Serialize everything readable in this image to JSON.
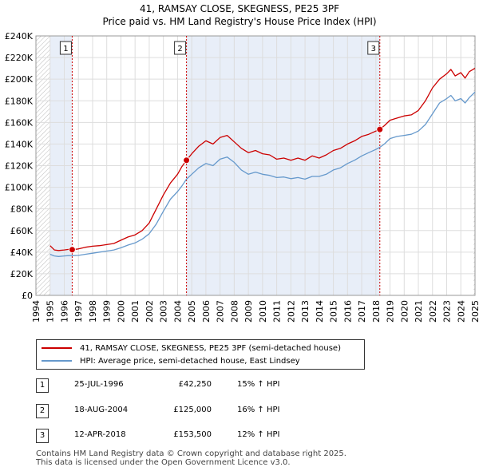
{
  "header": {
    "title": "41, RAMSAY CLOSE, SKEGNESS, PE25 3PF",
    "subtitle": "Price paid vs. HM Land Registry's House Price Index (HPI)"
  },
  "legend": {
    "property_label": "41, RAMSAY CLOSE, SKEGNESS, PE25 3PF (semi-detached house)",
    "hpi_label": "HPI: Average price, semi-detached house, East Lindsey"
  },
  "transactions": [
    {
      "num": "1",
      "date": "25-JUL-1996",
      "price": "£42,250",
      "hpi": "15% ↑ HPI"
    },
    {
      "num": "2",
      "date": "18-AUG-2004",
      "price": "£125,000",
      "hpi": "16% ↑ HPI"
    },
    {
      "num": "3",
      "date": "12-APR-2018",
      "price": "£153,500",
      "hpi": "12% ↑ HPI"
    }
  ],
  "footer": {
    "line1": "Contains HM Land Registry data © Crown copyright and database right 2025.",
    "line2": "This data is licensed under the Open Government Licence v3.0."
  },
  "colors": {
    "property": "#cc0000",
    "hpi": "#6699cc",
    "shade": "#e8eef8",
    "grid": "#dddddd"
  },
  "chart_data": {
    "type": "line",
    "title": "41, RAMSAY CLOSE, SKEGNESS, PE25 3PF",
    "subtitle": "Price paid vs. HM Land Registry's House Price Index (HPI)",
    "xlabel": "",
    "ylabel": "",
    "xlim": [
      1994,
      2025
    ],
    "ylim": [
      0,
      240000
    ],
    "x_ticks": [
      "1994",
      "1995",
      "1996",
      "1997",
      "1998",
      "1999",
      "2000",
      "2001",
      "2002",
      "2003",
      "2004",
      "2005",
      "2006",
      "2007",
      "2008",
      "2009",
      "2010",
      "2011",
      "2012",
      "2013",
      "2014",
      "2015",
      "2016",
      "2017",
      "2018",
      "2019",
      "2020",
      "2021",
      "2022",
      "2023",
      "2024",
      "2025"
    ],
    "y_ticks": [
      {
        "value": 0,
        "label": "£0"
      },
      {
        "value": 20000,
        "label": "£20K"
      },
      {
        "value": 40000,
        "label": "£40K"
      },
      {
        "value": 60000,
        "label": "£60K"
      },
      {
        "value": 80000,
        "label": "£80K"
      },
      {
        "value": 100000,
        "label": "£100K"
      },
      {
        "value": 120000,
        "label": "£120K"
      },
      {
        "value": 140000,
        "label": "£140K"
      },
      {
        "value": 160000,
        "label": "£160K"
      },
      {
        "value": 180000,
        "label": "£180K"
      },
      {
        "value": 200000,
        "label": "£200K"
      },
      {
        "value": 220000,
        "label": "£220K"
      },
      {
        "value": 240000,
        "label": "£240K"
      }
    ],
    "grid": true,
    "series": [
      {
        "name": "41, RAMSAY CLOSE, SKEGNESS, PE25 3PF (semi-detached house)",
        "x": [
          1995.0,
          1995.3,
          1995.6,
          1996.0,
          1996.3,
          1996.56,
          1997.0,
          1997.5,
          1998.0,
          1998.5,
          1999.0,
          1999.5,
          2000.0,
          2000.5,
          2001.0,
          2001.5,
          2002.0,
          2002.5,
          2003.0,
          2003.5,
          2004.0,
          2004.3,
          2004.63,
          2005.0,
          2005.5,
          2006.0,
          2006.5,
          2007.0,
          2007.5,
          2008.0,
          2008.5,
          2009.0,
          2009.5,
          2010.0,
          2010.5,
          2011.0,
          2011.5,
          2012.0,
          2012.5,
          2013.0,
          2013.5,
          2014.0,
          2014.5,
          2015.0,
          2015.5,
          2016.0,
          2016.5,
          2017.0,
          2017.5,
          2018.0,
          2018.28,
          2018.6,
          2019.0,
          2019.5,
          2020.0,
          2020.5,
          2021.0,
          2021.5,
          2022.0,
          2022.5,
          2023.0,
          2023.3,
          2023.6,
          2024.0,
          2024.3,
          2024.6,
          2025.0
        ],
        "values": [
          46000,
          42000,
          41500,
          42000,
          42500,
          42250,
          43000,
          44500,
          45500,
          46000,
          47000,
          48000,
          51000,
          54000,
          56000,
          60000,
          67000,
          80000,
          93000,
          104000,
          112000,
          119000,
          125000,
          131000,
          138000,
          143000,
          140000,
          146000,
          148000,
          142000,
          136000,
          132000,
          134000,
          131000,
          130000,
          126000,
          127000,
          125000,
          127000,
          125000,
          129000,
          127000,
          130000,
          134000,
          136000,
          140000,
          143000,
          147000,
          149000,
          152000,
          153500,
          157000,
          162000,
          164000,
          166000,
          167000,
          171000,
          180000,
          192000,
          200000,
          205000,
          209000,
          203000,
          206000,
          201000,
          207000,
          210000
        ]
      },
      {
        "name": "HPI: Average price, semi-detached house, East Lindsey",
        "x": [
          1995.0,
          1995.3,
          1995.6,
          1996.0,
          1996.3,
          1996.56,
          1997.0,
          1997.5,
          1998.0,
          1998.5,
          1999.0,
          1999.5,
          2000.0,
          2000.5,
          2001.0,
          2001.5,
          2002.0,
          2002.5,
          2003.0,
          2003.5,
          2004.0,
          2004.3,
          2004.63,
          2005.0,
          2005.5,
          2006.0,
          2006.5,
          2007.0,
          2007.5,
          2008.0,
          2008.5,
          2009.0,
          2009.5,
          2010.0,
          2010.5,
          2011.0,
          2011.5,
          2012.0,
          2012.5,
          2013.0,
          2013.5,
          2014.0,
          2014.5,
          2015.0,
          2015.5,
          2016.0,
          2016.5,
          2017.0,
          2017.5,
          2018.0,
          2018.28,
          2018.6,
          2019.0,
          2019.5,
          2020.0,
          2020.5,
          2021.0,
          2021.5,
          2022.0,
          2022.5,
          2023.0,
          2023.3,
          2023.6,
          2024.0,
          2024.3,
          2024.6,
          2025.0
        ],
        "values": [
          38000,
          36500,
          36000,
          36500,
          36800,
          36800,
          37000,
          38000,
          39000,
          40000,
          41000,
          42000,
          44000,
          46500,
          48500,
          52000,
          57000,
          66000,
          78000,
          89000,
          96000,
          101000,
          107500,
          112000,
          118000,
          122000,
          120000,
          126000,
          128000,
          123000,
          116000,
          112000,
          114000,
          112000,
          111000,
          109000,
          109500,
          108000,
          109000,
          107500,
          110000,
          110000,
          112000,
          116000,
          118000,
          122000,
          125000,
          129000,
          132000,
          135000,
          137000,
          140000,
          145000,
          147000,
          148000,
          149000,
          152000,
          158000,
          168000,
          178000,
          182000,
          185000,
          180000,
          182000,
          178000,
          183000,
          188000
        ]
      }
    ],
    "markers": [
      {
        "num": "1",
        "x": 1996.56,
        "value": 42250
      },
      {
        "num": "2",
        "x": 2004.63,
        "value": 125000
      },
      {
        "num": "3",
        "x": 2018.28,
        "value": 153500
      }
    ],
    "shaded_ranges": [
      [
        1995.0,
        1996.56
      ],
      [
        2004.63,
        2018.28
      ]
    ],
    "hatched_ranges": [
      [
        1994.0,
        1995.0
      ],
      [
        2024.9,
        2025.0
      ]
    ]
  }
}
